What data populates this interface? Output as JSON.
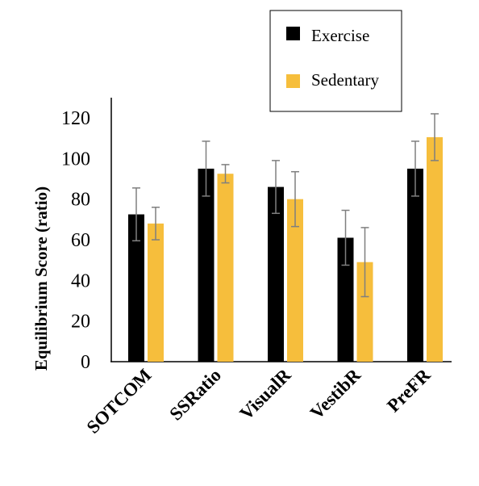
{
  "chart_data": {
    "type": "bar",
    "title": "",
    "xlabel": "",
    "ylabel": "Equilibrium Score (ratio)",
    "ylim": [
      0,
      120
    ],
    "yticks": [
      0,
      20,
      40,
      60,
      80,
      100,
      120
    ],
    "categories": [
      "SOTCOM",
      "SSRatio",
      "VisualR",
      "VestibR",
      "PreFR"
    ],
    "series": [
      {
        "name": "Exercise",
        "color": "#000000",
        "values": [
          72.5,
          95,
          86,
          61,
          95
        ],
        "error": [
          13,
          13.5,
          13,
          13.5,
          13.5
        ]
      },
      {
        "name": "Sedentary",
        "color": "#F6BE3C",
        "values": [
          68,
          92.5,
          80,
          49,
          110.5
        ],
        "error": [
          8,
          4.5,
          13.5,
          17,
          11.5
        ]
      }
    ],
    "legend_position": "top-right",
    "grid": false
  }
}
